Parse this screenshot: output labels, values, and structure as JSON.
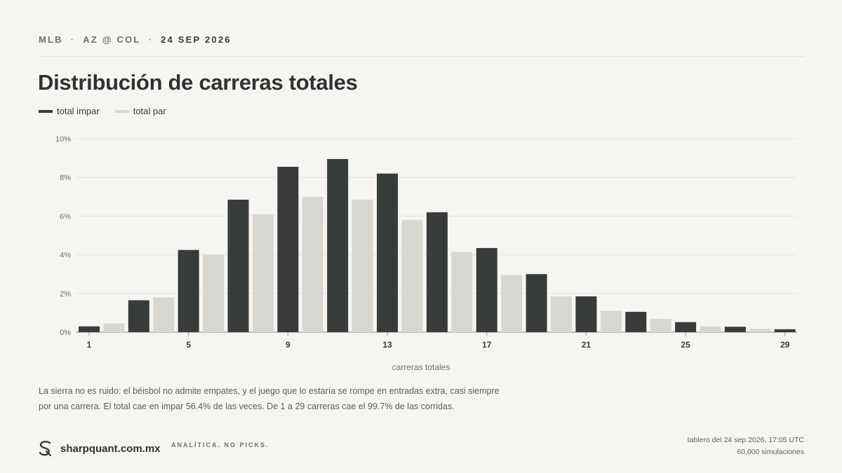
{
  "header": {
    "league": "MLB",
    "matchup": "AZ @ COL",
    "date": "24 SEP 2026",
    "separator": "·"
  },
  "title": "Distribución de carreras totales",
  "legend": [
    {
      "label": "total impar",
      "color": "#373c3a"
    },
    {
      "label": "total par",
      "color": "#d9d7d1"
    }
  ],
  "chart_data": {
    "type": "bar",
    "xlabel": "carreras totales",
    "ylabel": "",
    "ylim": [
      0,
      10
    ],
    "yticks": [
      "0%",
      "2%",
      "4%",
      "6%",
      "8%",
      "10%"
    ],
    "xticks": [
      1,
      5,
      9,
      13,
      17,
      21,
      25,
      29
    ],
    "grid": true,
    "legend_position": "top-left",
    "categories": [
      1,
      2,
      3,
      4,
      5,
      6,
      7,
      8,
      9,
      10,
      11,
      12,
      13,
      14,
      15,
      16,
      17,
      18,
      19,
      20,
      21,
      22,
      23,
      24,
      25,
      26,
      27,
      28,
      29
    ],
    "values": [
      0.3,
      0.45,
      1.65,
      1.8,
      4.25,
      4.0,
      6.85,
      6.1,
      8.55,
      7.0,
      8.95,
      6.85,
      8.2,
      5.8,
      6.2,
      4.15,
      4.35,
      2.95,
      3.0,
      1.85,
      1.85,
      1.1,
      1.05,
      0.68,
      0.52,
      0.3,
      0.28,
      0.18,
      0.15
    ],
    "series": [
      {
        "name": "total impar",
        "parity": "odd",
        "color": "#373c3a"
      },
      {
        "name": "total par",
        "parity": "even",
        "color": "#d9d7d1"
      }
    ]
  },
  "note": {
    "line1": "La sierra no es ruido: el béisbol no admite empates, y el juego que lo estaría se rompe en entradas extra, casi siempre",
    "line2": "por una carrera. El total cae en impar 56.4% de las veces. De 1 a 29 carreras cae el 99.7% de las corridas."
  },
  "footer": {
    "brand": "sharpquant.com.mx",
    "tagline": "ANALÍTICA. NO PICKS.",
    "timestamp": "tablero del 24 sep 2026, 17:05 UTC",
    "simulations": "60,000 simulaciones",
    "logo_icon": "sq-logo-icon"
  }
}
